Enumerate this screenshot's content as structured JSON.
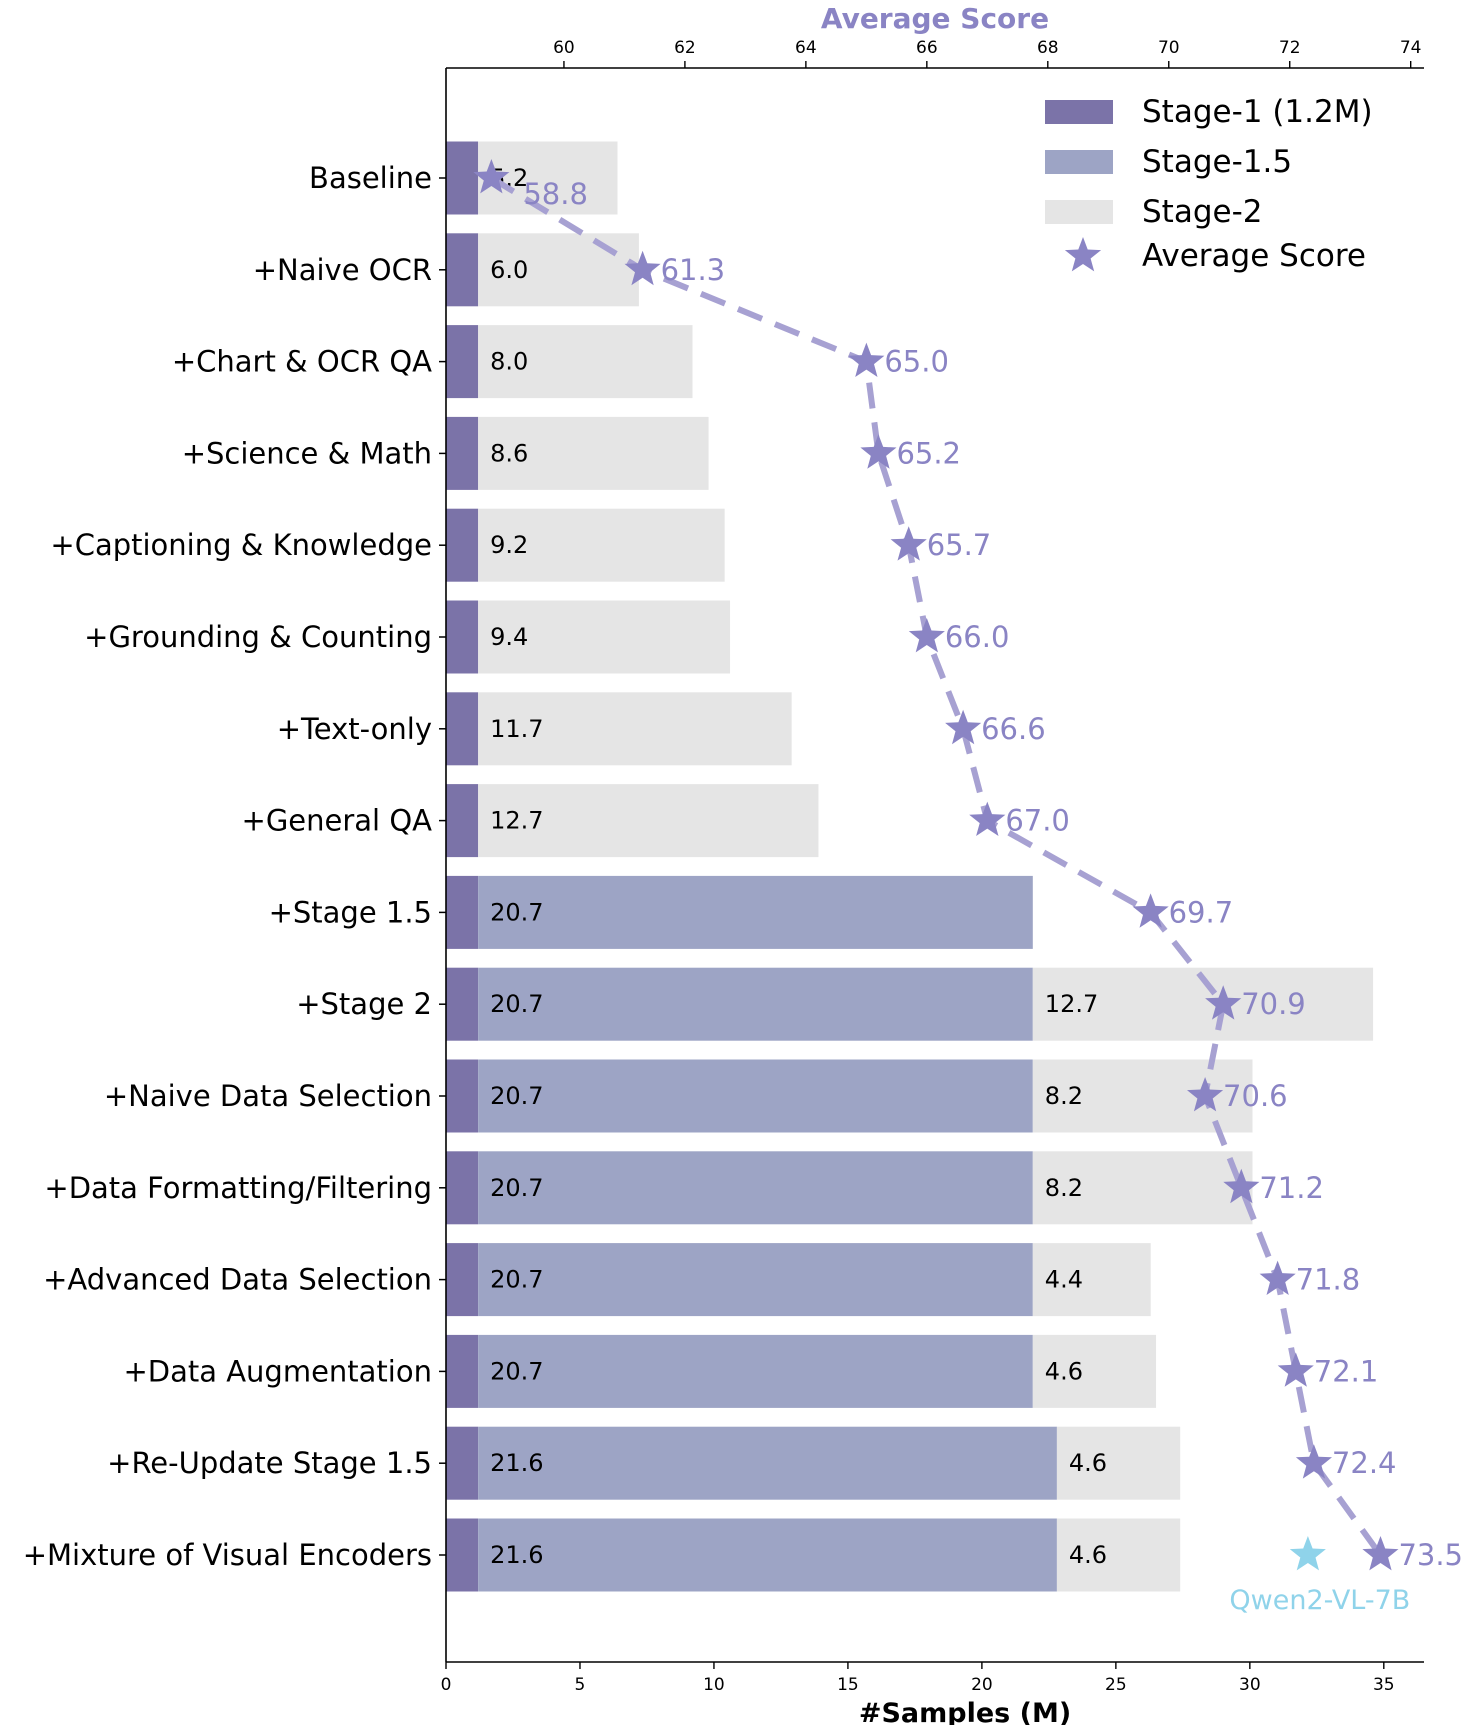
{
  "chart_data": {
    "type": "bar",
    "orientation": "horizontal",
    "stacked": true,
    "title": "",
    "xlabel": "#Samples (M)",
    "x2label": "Average Score",
    "xlim": [
      0,
      36.5
    ],
    "x2lim": [
      58.05,
      74.22
    ],
    "xticks": [
      0,
      5,
      10,
      15,
      20,
      25,
      30,
      35
    ],
    "x2ticks": [
      60,
      62,
      64,
      66,
      68,
      70,
      72,
      74
    ],
    "grid": false,
    "legend_position": "top-right",
    "categories": [
      "Baseline",
      "+Naive OCR",
      "+Chart & OCR QA",
      "+Science & Math",
      "+Captioning & Knowledge",
      "+Grounding & Counting",
      "+Text-only",
      "+General QA",
      "+Stage 1.5",
      "+Stage 2",
      "+Naive Data Selection",
      "+Data Formatting/Filtering",
      "+Advanced Data Selection",
      "+Data Augmentation",
      "+Re-Update Stage 1.5",
      "+Mixture of Visual Encoders"
    ],
    "series": [
      {
        "name": "Stage-1 (1.2M)",
        "color": "#7b73a8",
        "values": [
          1.2,
          1.2,
          1.2,
          1.2,
          1.2,
          1.2,
          1.2,
          1.2,
          1.2,
          1.2,
          1.2,
          1.2,
          1.2,
          1.2,
          1.2,
          1.2
        ]
      },
      {
        "name": "Stage-1.5",
        "color": "#9da4c5",
        "values": [
          0,
          0,
          0,
          0,
          0,
          0,
          0,
          0,
          20.7,
          20.7,
          20.7,
          20.7,
          20.7,
          20.7,
          21.6,
          21.6
        ]
      },
      {
        "name": "Stage-2",
        "color": "#e5e5e5",
        "values": [
          5.2,
          6.0,
          8.0,
          8.6,
          9.2,
          9.4,
          11.7,
          12.7,
          0,
          12.7,
          8.2,
          8.2,
          4.4,
          4.6,
          4.6,
          4.6
        ]
      }
    ],
    "bar_labels": [
      [
        "5.2",
        ""
      ],
      [
        "6.0",
        ""
      ],
      [
        "8.0",
        ""
      ],
      [
        "8.6",
        ""
      ],
      [
        "9.2",
        ""
      ],
      [
        "9.4",
        ""
      ],
      [
        "11.7",
        ""
      ],
      [
        "12.7",
        ""
      ],
      [
        "20.7",
        ""
      ],
      [
        "20.7",
        "12.7"
      ],
      [
        "20.7",
        "8.2"
      ],
      [
        "20.7",
        "8.2"
      ],
      [
        "20.7",
        "4.4"
      ],
      [
        "20.7",
        "4.6"
      ],
      [
        "21.6",
        "4.6"
      ],
      [
        "21.6",
        "4.6"
      ]
    ],
    "score_series": {
      "name": "Average Score",
      "color": "#8a84c4",
      "values": [
        58.8,
        61.3,
        65.0,
        65.2,
        65.7,
        66.0,
        66.6,
        67.0,
        69.7,
        70.9,
        70.6,
        71.2,
        71.8,
        72.1,
        72.4,
        73.5
      ],
      "labels": [
        "58.8",
        "61.3",
        "65.0",
        "65.2",
        "65.7",
        "66.0",
        "66.6",
        "67.0",
        "69.7",
        "70.9",
        "70.6",
        "71.2",
        "71.8",
        "72.1",
        "72.4",
        "73.5"
      ]
    },
    "reference": {
      "name": "Qwen2-VL-7B",
      "score": 72.3,
      "category": "+Mixture of Visual Encoders",
      "color": "#8fd3ea"
    }
  }
}
